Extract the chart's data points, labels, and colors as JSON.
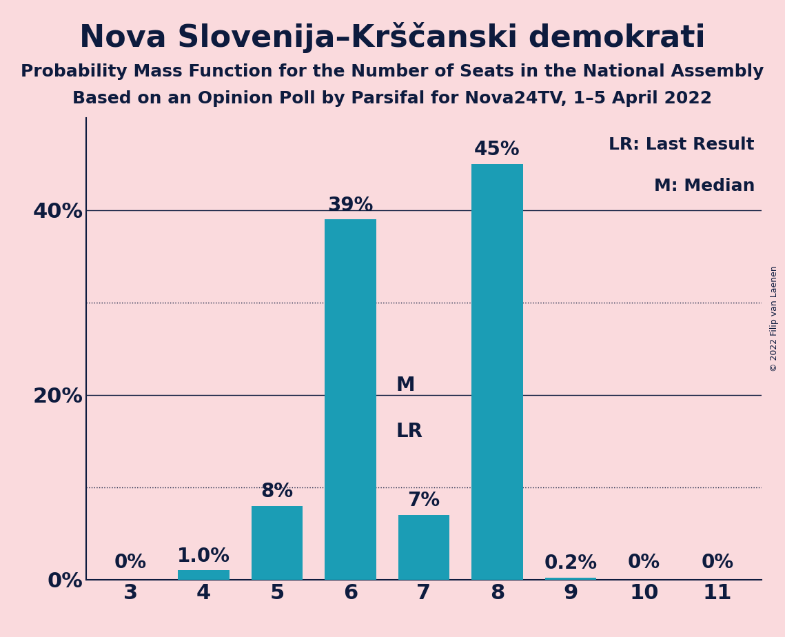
{
  "title": "Nova Slovenija–Krščanski demokrati",
  "subtitle1": "Probability Mass Function for the Number of Seats in the National Assembly",
  "subtitle2": "Based on an Opinion Poll by Parsifal for Nova24TV, 1–5 April 2022",
  "copyright": "© 2022 Filip van Laenen",
  "categories": [
    3,
    4,
    5,
    6,
    7,
    8,
    9,
    10,
    11
  ],
  "values": [
    0.0,
    1.0,
    8.0,
    39.0,
    7.0,
    45.0,
    0.2,
    0.0,
    0.0
  ],
  "bar_labels": [
    "0%",
    "1.0%",
    "8%",
    "39%",
    "7%",
    "45%",
    "0.2%",
    "0%",
    "0%"
  ],
  "bar_color": "#1B9DB5",
  "background_color": "#FADADD",
  "text_color": "#0D1B3E",
  "yticks": [
    0,
    20,
    40
  ],
  "ytick_labels": [
    "0%",
    "20%",
    "40%"
  ],
  "ylim": [
    0,
    50
  ],
  "dotted_gridlines": [
    10,
    30
  ],
  "solid_gridlines": [
    20,
    40
  ],
  "median_seat": 7,
  "lr_seat": 7,
  "legend_lr": "LR: Last Result",
  "legend_m": "M: Median",
  "title_fontsize": 32,
  "subtitle_fontsize": 18,
  "axis_fontsize": 22,
  "bar_label_fontsize": 20,
  "legend_fontsize": 18
}
